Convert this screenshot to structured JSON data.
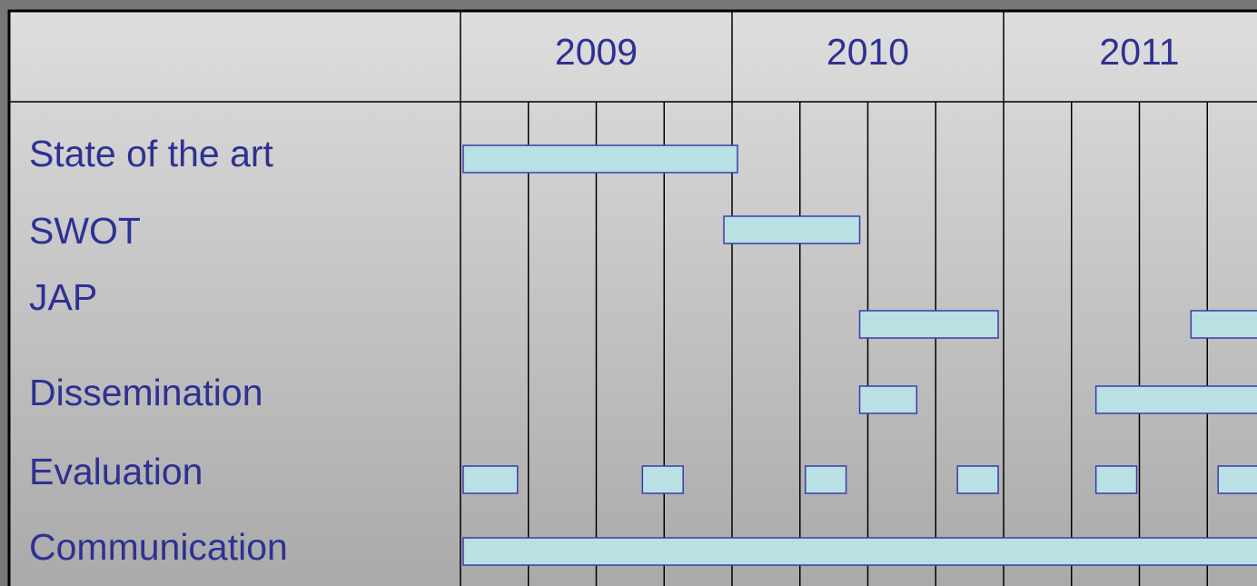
{
  "chart_data": {
    "type": "gantt",
    "categories": [
      "2009",
      "2010",
      "2011"
    ],
    "xlim": [
      2009,
      2012
    ],
    "xticks": [
      2009,
      2009.25,
      2009.5,
      2009.75,
      2010,
      2010.25,
      2010.5,
      2010.75,
      2011,
      2011.25,
      2011.5,
      2011.75,
      2012
    ],
    "color": "#b9e0e2",
    "tasks": [
      {
        "name": "State of the art",
        "bars": [
          [
            2009.01,
            2010.02
          ]
        ]
      },
      {
        "name": "SWOT",
        "bars": [
          [
            2009.97,
            2010.47
          ]
        ]
      },
      {
        "name": "JAP",
        "bars": [
          [
            2010.47,
            2010.98
          ],
          [
            2011.69,
            2012
          ]
        ]
      },
      {
        "name": "Dissemination",
        "bars": [
          [
            2010.47,
            2010.68
          ],
          [
            2011.34,
            2012
          ]
        ]
      },
      {
        "name": "Evaluation",
        "bars": [
          [
            2009.01,
            2009.21
          ],
          [
            2009.67,
            2009.82
          ],
          [
            2010.27,
            2010.42
          ],
          [
            2010.83,
            2010.98
          ],
          [
            2011.34,
            2011.49
          ],
          [
            2011.79,
            2011.94
          ]
        ]
      },
      {
        "name": "Communication",
        "bars": [
          [
            2009.01,
            2012
          ]
        ]
      }
    ]
  }
}
